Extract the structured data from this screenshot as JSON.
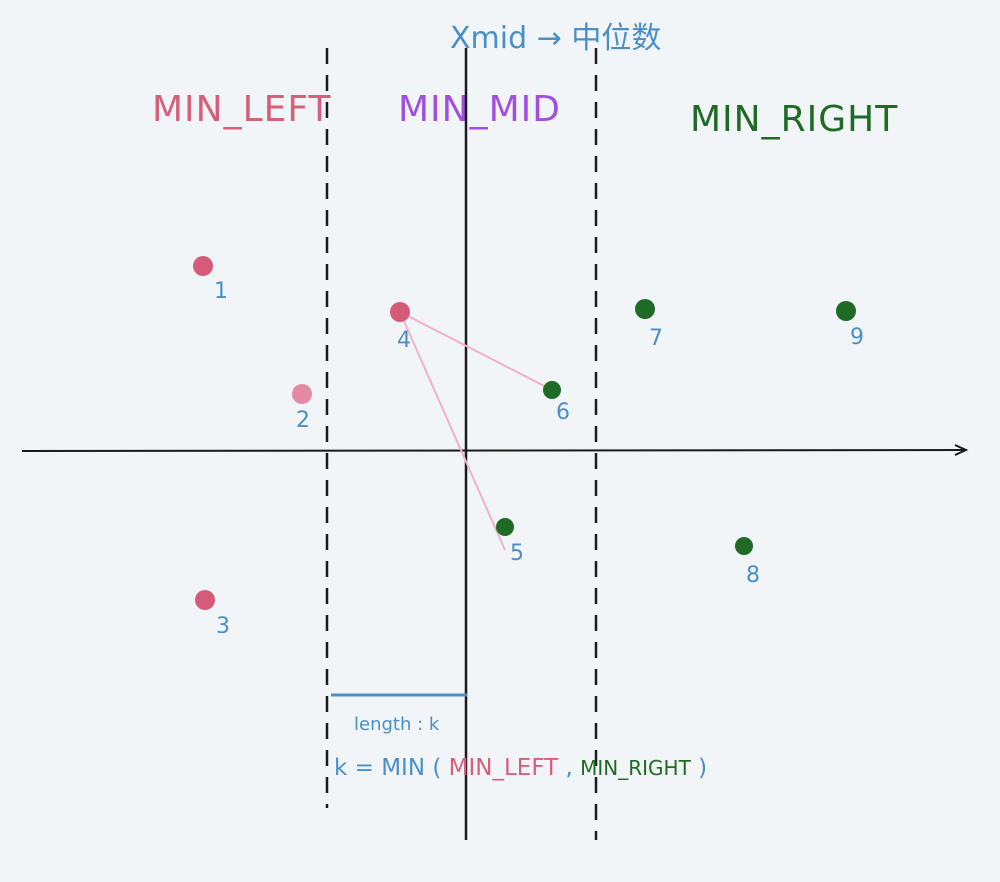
{
  "title": "Xmid → 中位数",
  "regions": {
    "left": {
      "label": "MIN_LEFT",
      "color": "#d4607c"
    },
    "mid": {
      "label": "MIN_MID",
      "color": "#a04fe0"
    },
    "right": {
      "label": "MIN_RIGHT",
      "color": "#1f6a24"
    }
  },
  "colors": {
    "pink": "#d65a7a",
    "light_pink": "#e58aa2",
    "green": "#1f6a24",
    "blue_label": "#4a8fc7",
    "axis": "#1a1a1a",
    "link": "#f0b2c4"
  },
  "points": [
    {
      "id": "p1",
      "label": "1",
      "color": "#d65a7a"
    },
    {
      "id": "p2",
      "label": "2",
      "color": "#e58aa2"
    },
    {
      "id": "p3",
      "label": "3",
      "color": "#d65a7a"
    },
    {
      "id": "p4",
      "label": "4",
      "color": "#d65a7a"
    },
    {
      "id": "p5",
      "label": "5",
      "color": "#1f6a24"
    },
    {
      "id": "p6",
      "label": "6",
      "color": "#1f6a24"
    },
    {
      "id": "p7",
      "label": "7",
      "color": "#1f6a24"
    },
    {
      "id": "p8",
      "label": "8",
      "color": "#1f6a24"
    },
    {
      "id": "p9",
      "label": "9",
      "color": "#1f6a24"
    }
  ],
  "connections": [
    {
      "from": "p4",
      "to": "p6"
    },
    {
      "from": "p4",
      "to": "p5"
    }
  ],
  "length_label": "length : k",
  "formula": {
    "prefix": "k = MIN ( ",
    "left": "MIN_LEFT",
    "sep": " , ",
    "right": "MIN_RIGHT",
    "suffix": " )"
  }
}
